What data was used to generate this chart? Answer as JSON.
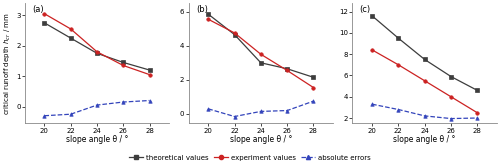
{
  "x": [
    20,
    22,
    24,
    26,
    28
  ],
  "panel_a": {
    "label": "(a)",
    "theoretical": [
      2.75,
      2.25,
      1.75,
      1.45,
      1.2
    ],
    "experiment": [
      3.05,
      2.55,
      1.8,
      1.35,
      1.05
    ],
    "absolute_errors": [
      -0.3,
      -0.25,
      0.05,
      0.15,
      0.2
    ],
    "ylim": [
      -0.55,
      3.4
    ],
    "yticks": [
      0.0,
      1.0,
      2.0,
      3.0
    ]
  },
  "panel_b": {
    "label": "(b)",
    "theoretical": [
      5.85,
      4.65,
      3.0,
      2.65,
      2.15
    ],
    "experiment": [
      5.55,
      4.75,
      3.5,
      2.55,
      1.55
    ],
    "absolute_errors": [
      0.3,
      -0.15,
      0.15,
      0.2,
      0.75
    ],
    "ylim": [
      -0.55,
      6.5
    ],
    "yticks": [
      0.0,
      2.0,
      4.0,
      6.0
    ]
  },
  "panel_c": {
    "label": "(c)",
    "theoretical": [
      11.6,
      9.5,
      7.5,
      5.9,
      4.6
    ],
    "experiment": [
      8.4,
      7.0,
      5.5,
      4.0,
      2.5
    ],
    "absolute_errors": [
      3.3,
      2.8,
      2.2,
      1.95,
      2.0
    ],
    "ylim": [
      1.5,
      12.8
    ],
    "yticks": [
      2.0,
      4.0,
      6.0,
      8.0,
      10.0,
      12.0
    ]
  },
  "theoretical_color": "#3d3d3d",
  "experiment_color": "#cc2222",
  "error_color": "#3344bb",
  "ylabel": "critical runoff depth $h_{cr}$ / mm",
  "xlabel": "slope angle θ / °",
  "legend_labels": [
    "theoretical values",
    "experiment values",
    "absolute errors"
  ],
  "background_color": "#ffffff"
}
